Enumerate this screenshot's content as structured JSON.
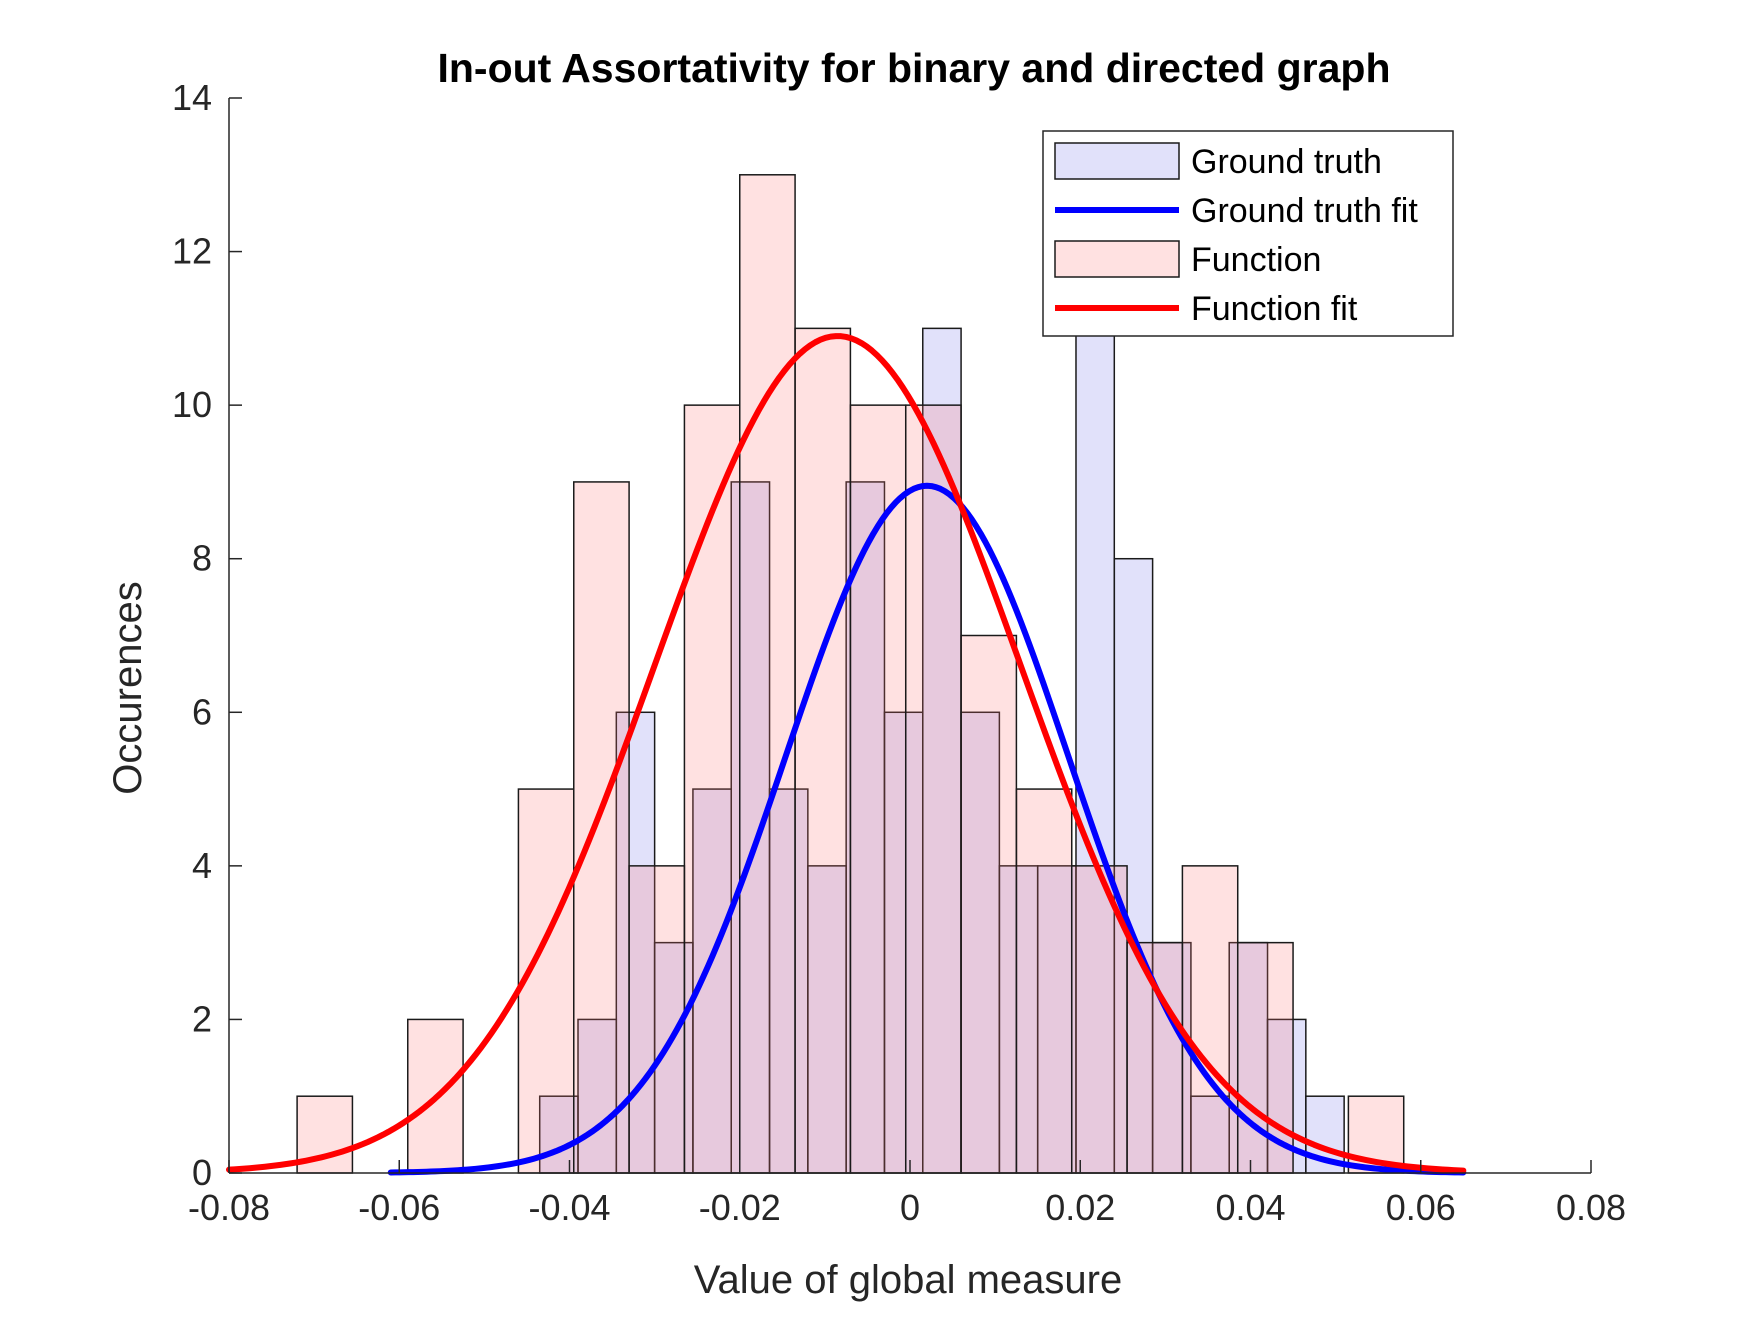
{
  "chart_data": {
    "type": "bar",
    "title": "In-out Assortativity for binary and directed graph",
    "xlabel": "Value of global measure",
    "ylabel": "Occurences",
    "xlim": [
      -0.08,
      0.08
    ],
    "ylim": [
      0,
      14
    ],
    "x_ticks": [
      -0.08,
      -0.06,
      -0.04,
      -0.02,
      0,
      0.02,
      0.04,
      0.06,
      0.08
    ],
    "x_tick_labels": [
      "-0.08",
      "-0.06",
      "-0.04",
      "-0.02",
      "0",
      "0.02",
      "0.04",
      "0.06",
      "0.08"
    ],
    "y_ticks": [
      0,
      2,
      4,
      6,
      8,
      10,
      12,
      14
    ],
    "y_tick_labels": [
      "0",
      "2",
      "4",
      "6",
      "8",
      "10",
      "12",
      "14"
    ],
    "grid": false,
    "legend_position": "top-right",
    "series": [
      {
        "name": "Ground truth",
        "kind": "histogram",
        "color": "#0000ff",
        "bins": [
          {
            "x0": -0.0435,
            "x1": -0.039,
            "count": 1
          },
          {
            "x0": -0.039,
            "x1": -0.0345,
            "count": 2
          },
          {
            "x0": -0.0345,
            "x1": -0.03,
            "count": 6
          },
          {
            "x0": -0.03,
            "x1": -0.0255,
            "count": 3
          },
          {
            "x0": -0.0255,
            "x1": -0.021,
            "count": 5
          },
          {
            "x0": -0.021,
            "x1": -0.0165,
            "count": 9
          },
          {
            "x0": -0.0165,
            "x1": -0.012,
            "count": 5
          },
          {
            "x0": -0.012,
            "x1": -0.0075,
            "count": 4
          },
          {
            "x0": -0.0075,
            "x1": -0.003,
            "count": 9
          },
          {
            "x0": -0.003,
            "x1": 0.0015,
            "count": 6
          },
          {
            "x0": 0.0015,
            "x1": 0.006,
            "count": 11
          },
          {
            "x0": 0.006,
            "x1": 0.0105,
            "count": 6
          },
          {
            "x0": 0.0105,
            "x1": 0.015,
            "count": 4
          },
          {
            "x0": 0.015,
            "x1": 0.0195,
            "count": 4
          },
          {
            "x0": 0.0195,
            "x1": 0.024,
            "count": 11
          },
          {
            "x0": 0.024,
            "x1": 0.0285,
            "count": 8
          },
          {
            "x0": 0.0285,
            "x1": 0.033,
            "count": 3
          },
          {
            "x0": 0.033,
            "x1": 0.0375,
            "count": 1
          },
          {
            "x0": 0.0375,
            "x1": 0.042,
            "count": 3
          },
          {
            "x0": 0.042,
            "x1": 0.0465,
            "count": 2
          },
          {
            "x0": 0.0465,
            "x1": 0.051,
            "count": 1
          }
        ]
      },
      {
        "name": "Ground truth fit",
        "kind": "normal-fit",
        "color": "#0000ff",
        "mean": 0.002,
        "sigma": 0.0166,
        "peak": 8.95,
        "x_range": [
          -0.061,
          0.065
        ]
      },
      {
        "name": "Function",
        "kind": "histogram",
        "color": "#ff0000",
        "bins": [
          {
            "x0": -0.072,
            "x1": -0.0655,
            "count": 1
          },
          {
            "x0": -0.059,
            "x1": -0.0525,
            "count": 2
          },
          {
            "x0": -0.046,
            "x1": -0.0395,
            "count": 5
          },
          {
            "x0": -0.0395,
            "x1": -0.033,
            "count": 9
          },
          {
            "x0": -0.033,
            "x1": -0.0265,
            "count": 4
          },
          {
            "x0": -0.0265,
            "x1": -0.02,
            "count": 10
          },
          {
            "x0": -0.02,
            "x1": -0.0135,
            "count": 13
          },
          {
            "x0": -0.0135,
            "x1": -0.007,
            "count": 11
          },
          {
            "x0": -0.007,
            "x1": -0.0005,
            "count": 10
          },
          {
            "x0": -0.0005,
            "x1": 0.006,
            "count": 10
          },
          {
            "x0": 0.006,
            "x1": 0.0125,
            "count": 7
          },
          {
            "x0": 0.0125,
            "x1": 0.019,
            "count": 5
          },
          {
            "x0": 0.019,
            "x1": 0.0255,
            "count": 4
          },
          {
            "x0": 0.0255,
            "x1": 0.032,
            "count": 3
          },
          {
            "x0": 0.032,
            "x1": 0.0385,
            "count": 4
          },
          {
            "x0": 0.0385,
            "x1": 0.045,
            "count": 3
          },
          {
            "x0": 0.0515,
            "x1": 0.058,
            "count": 1
          }
        ]
      },
      {
        "name": "Function fit",
        "kind": "normal-fit",
        "color": "#ff0000",
        "mean": -0.0085,
        "sigma": 0.0215,
        "peak": 10.9,
        "x_range": [
          -0.08,
          0.065
        ]
      }
    ]
  }
}
